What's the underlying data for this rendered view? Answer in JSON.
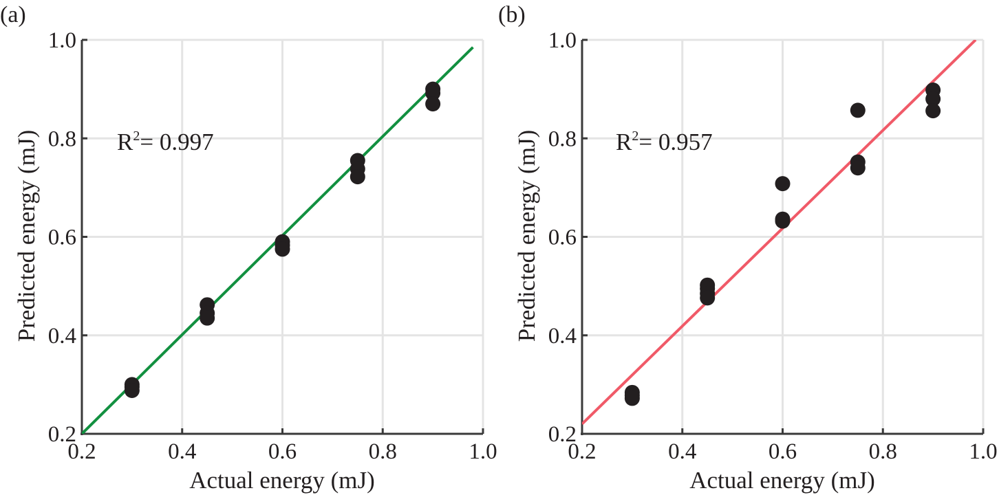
{
  "chart_data": [
    {
      "panel": "(a)",
      "type": "scatter",
      "xlabel": "Actual energy (mJ)",
      "ylabel": "Predicted energy (mJ)",
      "xlim": [
        0.2,
        1.0
      ],
      "ylim": [
        0.2,
        1.0
      ],
      "xticks": [
        "0.2",
        "0.4",
        "0.6",
        "0.8",
        "1.0"
      ],
      "yticks": [
        "0.2",
        "0.4",
        "0.6",
        "0.8",
        "1.0"
      ],
      "grid": true,
      "annotation": {
        "prefix": "R",
        "sup": "2",
        "text": "= 0.997"
      },
      "fit_line": {
        "color": "#129040",
        "x": [
          0.2,
          0.98
        ],
        "y": [
          0.2,
          0.985
        ]
      },
      "marker_color": "#231f20",
      "points": [
        {
          "x": 0.3,
          "y": 0.3
        },
        {
          "x": 0.3,
          "y": 0.295
        },
        {
          "x": 0.3,
          "y": 0.288
        },
        {
          "x": 0.45,
          "y": 0.462
        },
        {
          "x": 0.45,
          "y": 0.445
        },
        {
          "x": 0.45,
          "y": 0.435
        },
        {
          "x": 0.6,
          "y": 0.59
        },
        {
          "x": 0.6,
          "y": 0.583
        },
        {
          "x": 0.6,
          "y": 0.575
        },
        {
          "x": 0.75,
          "y": 0.755
        },
        {
          "x": 0.75,
          "y": 0.738
        },
        {
          "x": 0.75,
          "y": 0.722
        },
        {
          "x": 0.9,
          "y": 0.9
        },
        {
          "x": 0.9,
          "y": 0.892
        },
        {
          "x": 0.9,
          "y": 0.87
        }
      ]
    },
    {
      "panel": "(b)",
      "type": "scatter",
      "xlabel": "Actual energy (mJ)",
      "ylabel": "Predicted energy  (mJ)",
      "xlim": [
        0.2,
        1.0
      ],
      "ylim": [
        0.2,
        1.0
      ],
      "xticks": [
        "0.2",
        "0.4",
        "0.6",
        "0.8",
        "1.0"
      ],
      "yticks": [
        "0.2",
        "0.4",
        "0.6",
        "0.8",
        "1.0"
      ],
      "grid": true,
      "annotation": {
        "prefix": "R",
        "sup": "2",
        "text": "= 0.957"
      },
      "fit_line": {
        "color": "#f05a68",
        "x": [
          0.2,
          0.985
        ],
        "y": [
          0.22,
          1.0
        ]
      },
      "marker_color": "#231f20",
      "points": [
        {
          "x": 0.3,
          "y": 0.284
        },
        {
          "x": 0.3,
          "y": 0.278
        },
        {
          "x": 0.3,
          "y": 0.272
        },
        {
          "x": 0.45,
          "y": 0.502
        },
        {
          "x": 0.45,
          "y": 0.495
        },
        {
          "x": 0.45,
          "y": 0.485
        },
        {
          "x": 0.45,
          "y": 0.476
        },
        {
          "x": 0.6,
          "y": 0.708
        },
        {
          "x": 0.6,
          "y": 0.636
        },
        {
          "x": 0.6,
          "y": 0.632
        },
        {
          "x": 0.75,
          "y": 0.857
        },
        {
          "x": 0.75,
          "y": 0.752
        },
        {
          "x": 0.75,
          "y": 0.74
        },
        {
          "x": 0.9,
          "y": 0.898
        },
        {
          "x": 0.9,
          "y": 0.88
        },
        {
          "x": 0.9,
          "y": 0.856
        }
      ]
    }
  ]
}
